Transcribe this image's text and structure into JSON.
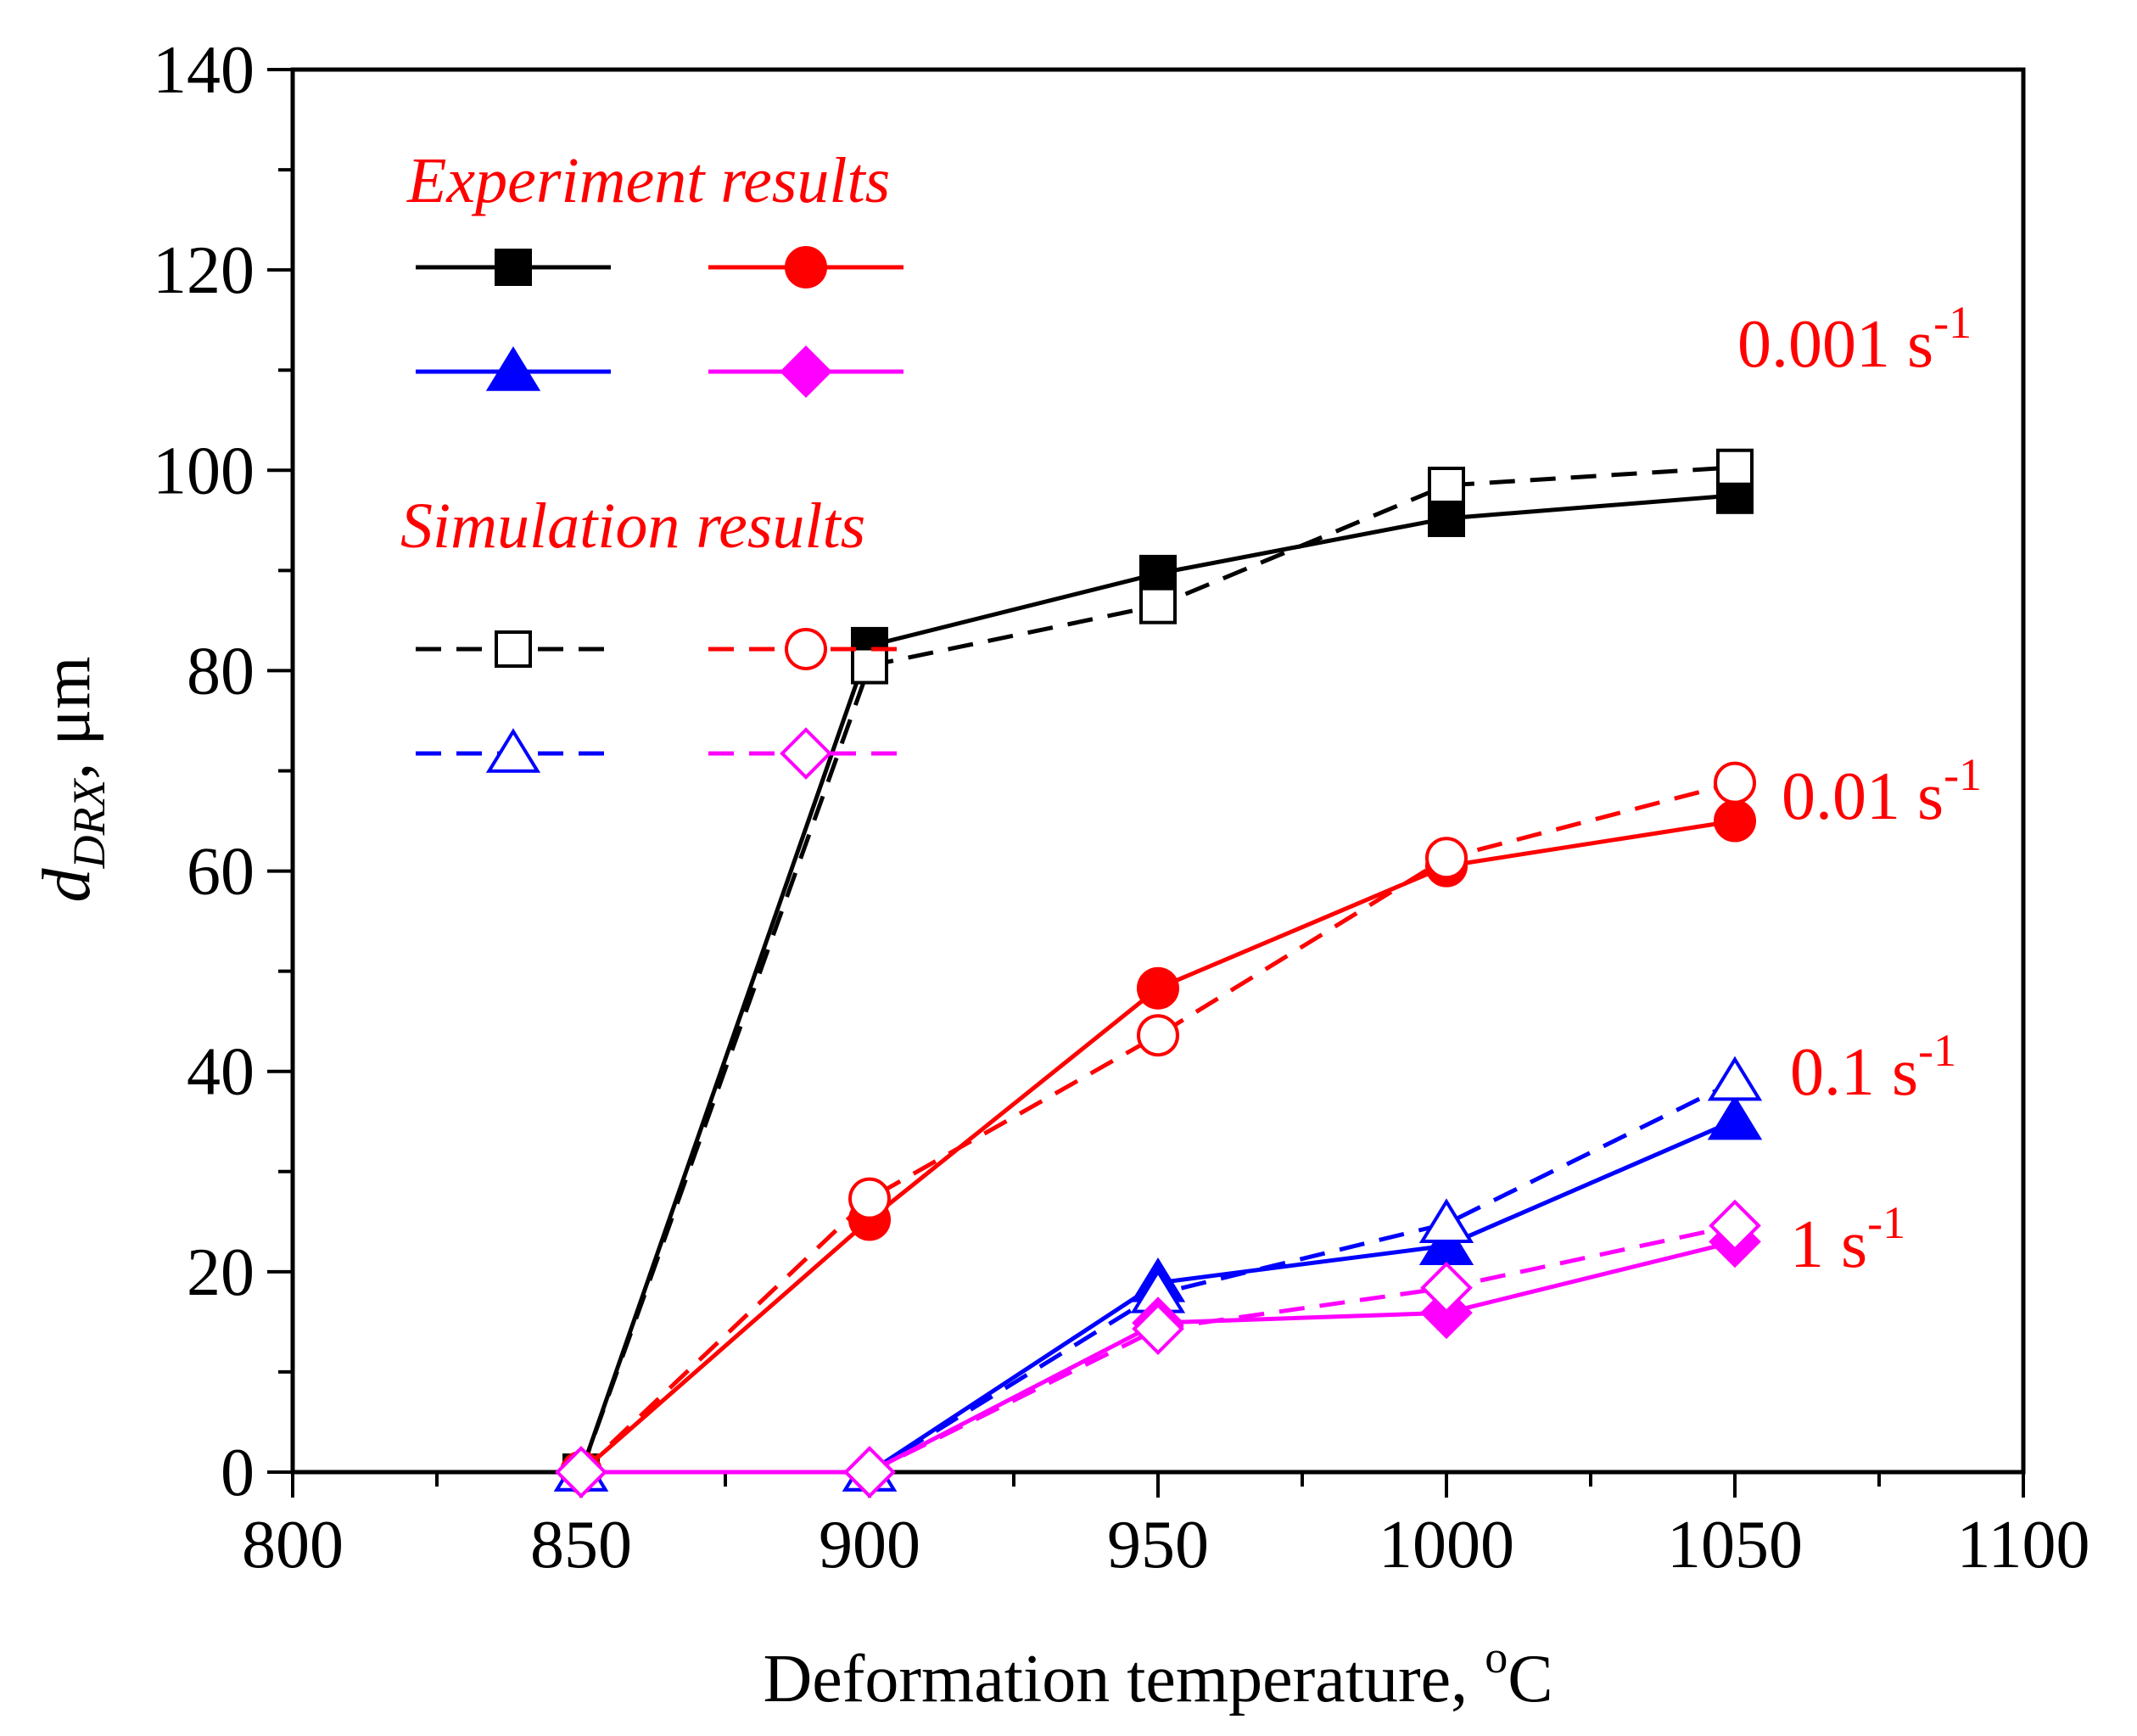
{
  "chart_data": {
    "type": "line",
    "xlabel": "Deformation temperature, ",
    "xlabel_unit": "C",
    "xlabel_unit_sup": "o",
    "ylabel_main": "d",
    "ylabel_sub": "DRX",
    "ylabel_unit": ", μm",
    "xlim": [
      800,
      1100
    ],
    "ylim": [
      0,
      140
    ],
    "xticks": [
      800,
      850,
      900,
      950,
      1000,
      1050,
      1100
    ],
    "yticks": [
      0,
      20,
      40,
      60,
      80,
      100,
      120,
      140
    ],
    "grid": false,
    "legend": {
      "placement": "top-left",
      "experiment_title": "Experiment results",
      "simulation_title": "Simulation results",
      "title_color": "#ff0000"
    },
    "x": [
      850,
      900,
      950,
      1000,
      1050
    ],
    "series": [
      {
        "group": "experiment",
        "rate_index": 0,
        "marker": "square",
        "filled": true,
        "dashed": false,
        "color": "#000000",
        "values": [
          0,
          82.5,
          89.7,
          95.2,
          97.5
        ]
      },
      {
        "group": "simulation",
        "rate_index": 0,
        "marker": "square",
        "filled": false,
        "dashed": true,
        "color": "#000000",
        "values": [
          0,
          80.5,
          86.5,
          98.5,
          100.3
        ]
      },
      {
        "group": "experiment",
        "rate_index": 1,
        "marker": "circle",
        "filled": true,
        "dashed": false,
        "color": "#ff0000",
        "values": [
          0,
          25.2,
          48.3,
          60.5,
          65.0
        ]
      },
      {
        "group": "simulation",
        "rate_index": 1,
        "marker": "circle",
        "filled": false,
        "dashed": true,
        "color": "#ff0000",
        "values": [
          0,
          27.3,
          43.6,
          61.3,
          68.8
        ]
      },
      {
        "group": "experiment",
        "rate_index": 2,
        "marker": "triangle",
        "filled": true,
        "dashed": false,
        "color": "#0000ff",
        "values": [
          0,
          0,
          18.9,
          22.6,
          35.1
        ]
      },
      {
        "group": "simulation",
        "rate_index": 2,
        "marker": "triangle",
        "filled": false,
        "dashed": true,
        "color": "#0000ff",
        "values": [
          0,
          0,
          17.8,
          24.8,
          39.0
        ]
      },
      {
        "group": "experiment",
        "rate_index": 3,
        "marker": "diamond",
        "filled": true,
        "dashed": false,
        "color": "#ff00ff",
        "values": [
          0,
          0,
          14.9,
          15.9,
          23.0
        ]
      },
      {
        "group": "simulation",
        "rate_index": 3,
        "marker": "diamond",
        "filled": false,
        "dashed": true,
        "color": "#ff00ff",
        "values": [
          0,
          0,
          14.3,
          18.4,
          24.6
        ]
      }
    ],
    "annotations": [
      {
        "text": "0.001 s",
        "sup": "-1",
        "color": "#ff0000"
      },
      {
        "text": "0.01 s",
        "sup": "-1",
        "color": "#ff0000"
      },
      {
        "text": "0.1 s",
        "sup": "-1",
        "color": "#ff0000"
      },
      {
        "text": "1 s",
        "sup": "-1",
        "color": "#ff0000"
      }
    ]
  }
}
